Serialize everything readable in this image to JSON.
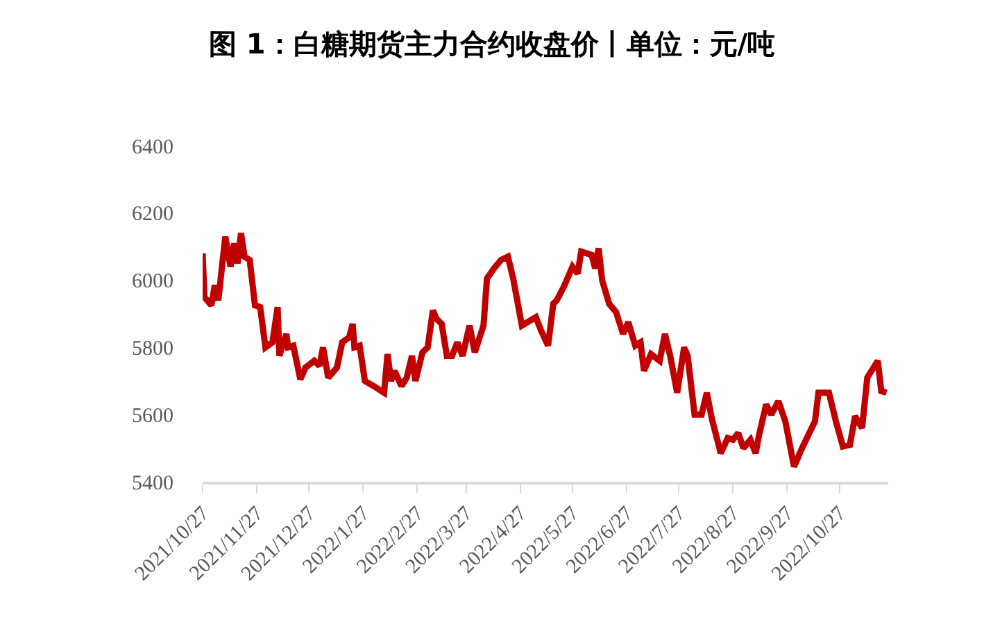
{
  "chart_data": {
    "type": "line",
    "title": "图 1：白糖期货主力合约收盘价丨单位：元/吨",
    "x": [
      "2021-10-27",
      "2021-10-28",
      "2021-11-01",
      "2021-11-03",
      "2021-11-05",
      "2021-11-09",
      "2021-11-12",
      "2021-11-14",
      "2021-11-16",
      "2021-11-18",
      "2021-11-20",
      "2021-11-23",
      "2021-11-26",
      "2021-11-29",
      "2021-12-02",
      "2021-12-06",
      "2021-12-09",
      "2021-12-10",
      "2021-12-14",
      "2021-12-15",
      "2021-12-18",
      "2021-12-22",
      "2021-12-25",
      "2021-12-30",
      "2022-01-02",
      "2022-01-04",
      "2022-01-07",
      "2022-01-12",
      "2022-01-15",
      "2022-01-19",
      "2022-01-21",
      "2022-01-22",
      "2022-01-25",
      "2022-01-28",
      "2022-02-02",
      "2022-02-08",
      "2022-02-10",
      "2022-02-12",
      "2022-02-14",
      "2022-02-18",
      "2022-02-21",
      "2022-02-24",
      "2022-02-26",
      "2022-03-02",
      "2022-03-05",
      "2022-03-08",
      "2022-03-10",
      "2022-03-13",
      "2022-03-16",
      "2022-03-19",
      "2022-03-22",
      "2022-03-25",
      "2022-03-29",
      "2022-04-01",
      "2022-04-06",
      "2022-04-08",
      "2022-04-12",
      "2022-04-16",
      "2022-04-20",
      "2022-04-23",
      "2022-04-28",
      "2022-05-06",
      "2022-05-09",
      "2022-05-13",
      "2022-05-16",
      "2022-05-18",
      "2022-05-22",
      "2022-05-27",
      "2022-05-30",
      "2022-06-01",
      "2022-06-07",
      "2022-06-09",
      "2022-06-11",
      "2022-06-13",
      "2022-06-17",
      "2022-06-21",
      "2022-06-25",
      "2022-06-28",
      "2022-07-02",
      "2022-07-05",
      "2022-07-07",
      "2022-07-11",
      "2022-07-16",
      "2022-07-19",
      "2022-07-22",
      "2022-07-26",
      "2022-07-30",
      "2022-08-01",
      "2022-08-05",
      "2022-08-09",
      "2022-08-12",
      "2022-08-15",
      "2022-08-20",
      "2022-08-24",
      "2022-08-27",
      "2022-08-30",
      "2022-09-02",
      "2022-09-06",
      "2022-09-09",
      "2022-09-11",
      "2022-09-15",
      "2022-09-18",
      "2022-09-22",
      "2022-09-26",
      "2022-10-01",
      "2022-10-06",
      "2022-10-13",
      "2022-10-15",
      "2022-10-21",
      "2022-10-25",
      "2022-10-29",
      "2022-11-02",
      "2022-11-05",
      "2022-11-09",
      "2022-11-12",
      "2022-11-18",
      "2022-11-20",
      "2022-11-23"
    ],
    "series": [
      {
        "color": "#c00000",
        "values": [
          6080,
          5950,
          5925,
          5985,
          5940,
          6130,
          6040,
          6110,
          6050,
          6140,
          6070,
          6060,
          5925,
          5920,
          5800,
          5815,
          5920,
          5775,
          5840,
          5800,
          5805,
          5705,
          5740,
          5760,
          5745,
          5800,
          5710,
          5740,
          5815,
          5830,
          5870,
          5800,
          5805,
          5700,
          5685,
          5665,
          5780,
          5700,
          5730,
          5685,
          5710,
          5775,
          5700,
          5785,
          5800,
          5910,
          5885,
          5870,
          5775,
          5775,
          5815,
          5775,
          5865,
          5785,
          5865,
          6005,
          6035,
          6060,
          6070,
          6005,
          5865,
          5890,
          5850,
          5805,
          5930,
          5940,
          5980,
          6040,
          6020,
          6085,
          6075,
          6035,
          6095,
          6000,
          5930,
          5905,
          5840,
          5875,
          5805,
          5815,
          5730,
          5780,
          5760,
          5840,
          5775,
          5665,
          5800,
          5775,
          5600,
          5600,
          5665,
          5585,
          5485,
          5530,
          5525,
          5545,
          5500,
          5525,
          5485,
          5540,
          5630,
          5600,
          5640,
          5580,
          5445,
          5505,
          5580,
          5665,
          5665,
          5580,
          5505,
          5510,
          5595,
          5560,
          5710,
          5760,
          5670,
          5665
        ]
      }
    ],
    "xlim": [
      "2021-10-27",
      "2022-11-24"
    ],
    "xticks": [
      {
        "value": "2021-10-27",
        "label": "2021/10/27"
      },
      {
        "value": "2021-11-27",
        "label": "2021/11/27"
      },
      {
        "value": "2021-12-27",
        "label": "2021/12/27"
      },
      {
        "value": "2022-01-27",
        "label": "2022/1/27"
      },
      {
        "value": "2022-02-27",
        "label": "2022/2/27"
      },
      {
        "value": "2022-03-27",
        "label": "2022/3/27"
      },
      {
        "value": "2022-04-27",
        "label": "2022/4/27"
      },
      {
        "value": "2022-05-27",
        "label": "2022/5/27"
      },
      {
        "value": "2022-06-27",
        "label": "2022/6/27"
      },
      {
        "value": "2022-07-27",
        "label": "2022/7/27"
      },
      {
        "value": "2022-08-27",
        "label": "2022/8/27"
      },
      {
        "value": "2022-09-27",
        "label": "2022/9/27"
      },
      {
        "value": "2022-10-27",
        "label": "2022/10/27"
      }
    ],
    "ylim": [
      5400,
      6400
    ],
    "yticks": [
      5400,
      5600,
      5800,
      6000,
      6200,
      6400
    ],
    "marker": "none",
    "line_style": "solid"
  }
}
